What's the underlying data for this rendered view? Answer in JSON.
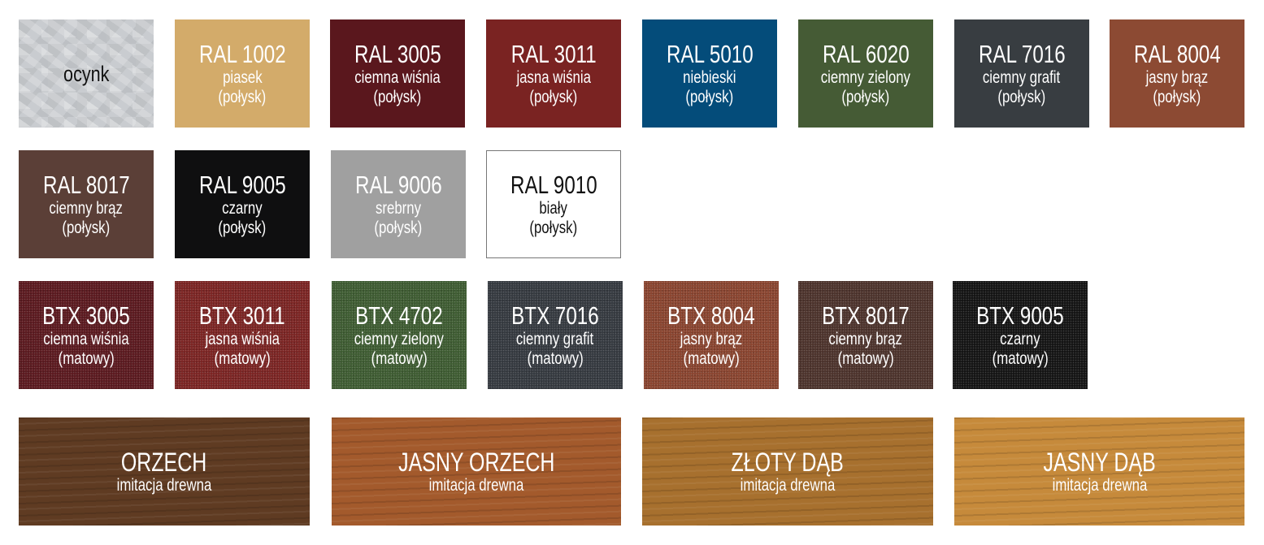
{
  "row1": [
    {
      "title": "",
      "sub": "ocynk",
      "note": "",
      "color": "#c9ccd0"
    },
    {
      "title": "RAL 1002",
      "sub": "piasek",
      "note": "(połysk)",
      "color": "#d3ab6a"
    },
    {
      "title": "RAL 3005",
      "sub": "ciemna wiśnia",
      "note": "(połysk)",
      "color": "#5a171d"
    },
    {
      "title": "RAL 3011",
      "sub": "jasna wiśnia",
      "note": "(połysk)",
      "color": "#7a2322"
    },
    {
      "title": "RAL 5010",
      "sub": "niebieski",
      "note": "(połysk)",
      "color": "#044c7a"
    },
    {
      "title": "RAL 6020",
      "sub": "ciemny zielony",
      "note": "(połysk)",
      "color": "#455b35"
    },
    {
      "title": "RAL 7016",
      "sub": "ciemny grafit",
      "note": "(połysk)",
      "color": "#383d41"
    },
    {
      "title": "RAL 8004",
      "sub": "jasny brąz",
      "note": "(połysk)",
      "color": "#8c4a33"
    }
  ],
  "row2": [
    {
      "title": "RAL 8017",
      "sub": "ciemny brąz",
      "note": "(połysk)",
      "color": "#5b3f37"
    },
    {
      "title": "RAL 9005",
      "sub": "czarny",
      "note": "(połysk)",
      "color": "#0f0f10"
    },
    {
      "title": "RAL 9006",
      "sub": "srebrny",
      "note": "(połysk)",
      "color": "#a0a0a0"
    },
    {
      "title": "RAL 9010",
      "sub": "biały",
      "note": "(połysk)",
      "color": "#ffffff"
    }
  ],
  "row3": [
    {
      "title": "BTX 3005",
      "sub": "ciemna wiśnia",
      "note": "(matowy)",
      "color": "#5c1a20"
    },
    {
      "title": "BTX 3011",
      "sub": "jasna wiśnia",
      "note": "(matowy)",
      "color": "#7c2524"
    },
    {
      "title": "BTX 4702",
      "sub": "ciemny zielony",
      "note": "(matowy)",
      "color": "#3f5d33"
    },
    {
      "title": "BTX 7016",
      "sub": "ciemny grafit",
      "note": "(matowy)",
      "color": "#363b41"
    },
    {
      "title": "BTX 8004",
      "sub": "jasny brąz",
      "note": "(matowy)",
      "color": "#8a4530"
    },
    {
      "title": "BTX 8017",
      "sub": "ciemny brąz",
      "note": "(matowy)",
      "color": "#4e342d"
    },
    {
      "title": "BTX 9005",
      "sub": "czarny",
      "note": "(matowy)",
      "color": "#151515"
    }
  ],
  "row4": [
    {
      "title": "ORZECH",
      "sub": "imitacja drewna",
      "color": "#5f3b22"
    },
    {
      "title": "JASNY ORZECH",
      "sub": "imitacja drewna",
      "color": "#a35a2c"
    },
    {
      "title": "ZŁOTY DĄB",
      "sub": "imitacja drewna",
      "color": "#a7702e"
    },
    {
      "title": "JASNY DĄB",
      "sub": "imitacja drewna",
      "color": "#c68a3b"
    }
  ]
}
